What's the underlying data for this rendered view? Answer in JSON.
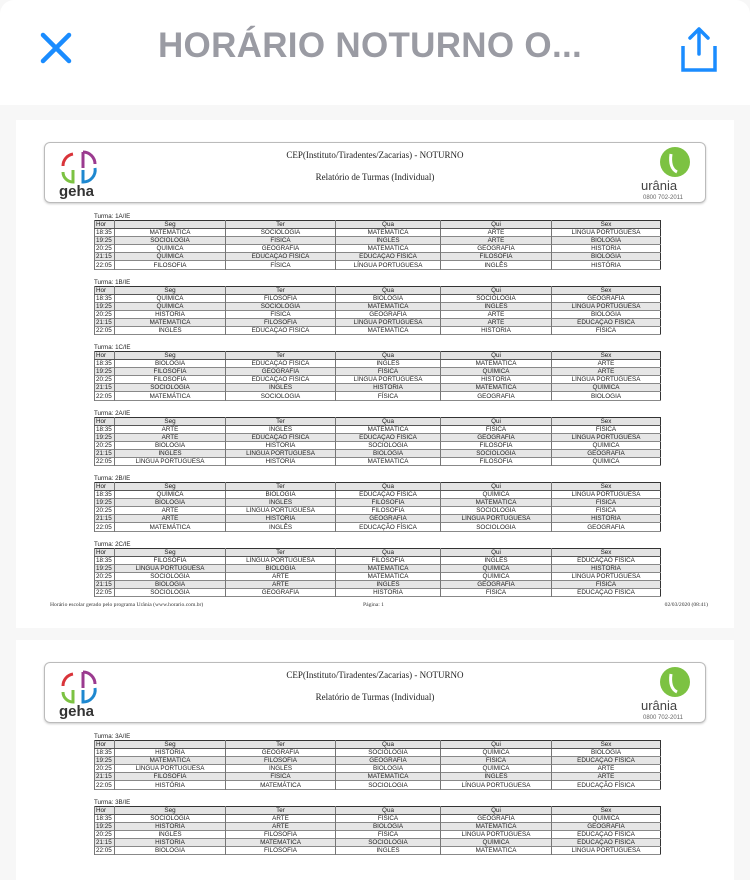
{
  "header": {
    "title": "HORÁRIO NOTURNO O...",
    "close_icon": "close-icon",
    "share_icon": "share-icon",
    "accent": "#1a8cff"
  },
  "report": {
    "school": "CEP(Instituto/Tiradentes/Zacarias) - NOTURNO",
    "subtitle": "Relatório de Turmas (Individual)",
    "logo_left": "geha",
    "logo_right": "urânia",
    "logo_right_phone": "0800 702-2011",
    "columns": [
      "Hor",
      "Seg",
      "Ter",
      "Qua",
      "Qui",
      "Sex"
    ],
    "times": [
      "18:35",
      "19:25",
      "20:25",
      "21:15",
      "22:05"
    ]
  },
  "pages": [
    {
      "turmas": [
        {
          "label": "Turma: 1A/IE",
          "rows": [
            [
              "MATEMÁTICA",
              "SOCIOLOGIA",
              "MATEMÁTICA",
              "ARTE",
              "LÍNGUA PORTUGUESA"
            ],
            [
              "SOCIOLOGIA",
              "FÍSICA",
              "INGLÊS",
              "ARTE",
              "BIOLOGIA"
            ],
            [
              "QUÍMICA",
              "GEOGRAFIA",
              "MATEMÁTICA",
              "GEOGRAFIA",
              "HISTÓRIA"
            ],
            [
              "QUÍMICA",
              "EDUCAÇÃO FÍSICA",
              "EDUCAÇÃO FÍSICA",
              "FILOSOFIA",
              "BIOLOGIA"
            ],
            [
              "FILOSOFIA",
              "FÍSICA",
              "LÍNGUA PORTUGUESA",
              "INGLÊS",
              "HISTÓRIA"
            ]
          ]
        },
        {
          "label": "Turma: 1B/IE",
          "rows": [
            [
              "QUÍMICA",
              "FILOSOFIA",
              "BIOLOGIA",
              "SOCIOLOGIA",
              "GEOGRAFIA"
            ],
            [
              "QUÍMICA",
              "SOCIOLOGIA",
              "MATEMÁTICA",
              "INGLÊS",
              "LÍNGUA PORTUGUESA"
            ],
            [
              "HISTÓRIA",
              "FÍSICA",
              "GEOGRAFIA",
              "ARTE",
              "BIOLOGIA"
            ],
            [
              "MATEMÁTICA",
              "FILOSOFIA",
              "LÍNGUA PORTUGUESA",
              "ARTE",
              "EDUCAÇÃO FÍSICA"
            ],
            [
              "INGLÊS",
              "EDUCAÇÃO FÍSICA",
              "MATEMÁTICA",
              "HISTÓRIA",
              "FÍSICA"
            ]
          ]
        },
        {
          "label": "Turma: 1C/IE",
          "rows": [
            [
              "BIOLOGIA",
              "EDUCAÇÃO FÍSICA",
              "INGLÊS",
              "MATEMÁTICA",
              "ARTE"
            ],
            [
              "FILOSOFIA",
              "GEOGRAFIA",
              "FÍSICA",
              "QUÍMICA",
              "ARTE"
            ],
            [
              "FILOSOFIA",
              "EDUCAÇÃO FÍSICA",
              "LÍNGUA PORTUGUESA",
              "HISTÓRIA",
              "LÍNGUA PORTUGUESA"
            ],
            [
              "SOCIOLOGIA",
              "INGLÊS",
              "HISTÓRIA",
              "MATEMÁTICA",
              "QUÍMICA"
            ],
            [
              "MATEMÁTICA",
              "SOCIOLOGIA",
              "FÍSICA",
              "GEOGRAFIA",
              "BIOLOGIA"
            ]
          ]
        },
        {
          "label": "Turma: 2A/IE",
          "rows": [
            [
              "ARTE",
              "INGLÊS",
              "MATEMÁTICA",
              "FÍSICA",
              "FÍSICA"
            ],
            [
              "ARTE",
              "EDUCAÇÃO FÍSICA",
              "EDUCAÇÃO FÍSICA",
              "GEOGRAFIA",
              "LÍNGUA PORTUGUESA"
            ],
            [
              "BIOLOGIA",
              "HISTÓRIA",
              "SOCIOLOGIA",
              "FILOSOFIA",
              "QUÍMICA"
            ],
            [
              "INGLÊS",
              "LÍNGUA PORTUGUESA",
              "BIOLOGIA",
              "SOCIOLOGIA",
              "GEOGRAFIA"
            ],
            [
              "LÍNGUA PORTUGUESA",
              "HISTÓRIA",
              "MATEMÁTICA",
              "FILOSOFIA",
              "QUÍMICA"
            ]
          ]
        },
        {
          "label": "Turma: 2B/IE",
          "rows": [
            [
              "QUÍMICA",
              "BIOLOGIA",
              "EDUCAÇÃO FÍSICA",
              "QUÍMICA",
              "LÍNGUA PORTUGUESA"
            ],
            [
              "BIOLOGIA",
              "INGLÊS",
              "FILOSOFIA",
              "MATEMÁTICA",
              "FÍSICA"
            ],
            [
              "ARTE",
              "LÍNGUA PORTUGUESA",
              "FILOSOFIA",
              "SOCIOLOGIA",
              "FÍSICA"
            ],
            [
              "ARTE",
              "HISTÓRIA",
              "GEOGRAFIA",
              "LÍNGUA PORTUGUESA",
              "HISTÓRIA"
            ],
            [
              "MATEMÁTICA",
              "INGLÊS",
              "EDUCAÇÃO FÍSICA",
              "SOCIOLOGIA",
              "GEOGRAFIA"
            ]
          ]
        },
        {
          "label": "Turma: 2C/IE",
          "rows": [
            [
              "FILOSOFIA",
              "LÍNGUA PORTUGUESA",
              "FILOSOFIA",
              "INGLÊS",
              "EDUCAÇÃO FÍSICA"
            ],
            [
              "LÍNGUA PORTUGUESA",
              "BIOLOGIA",
              "MATEMÁTICA",
              "QUÍMICA",
              "HISTÓRIA"
            ],
            [
              "SOCIOLOGIA",
              "ARTE",
              "MATEMÁTICA",
              "QUÍMICA",
              "LÍNGUA PORTUGUESA"
            ],
            [
              "BIOLOGIA",
              "ARTE",
              "INGLÊS",
              "GEOGRAFIA",
              "FÍSICA"
            ],
            [
              "SOCIOLOGIA",
              "GEOGRAFIA",
              "HISTÓRIA",
              "FÍSICA",
              "EDUCAÇÃO FÍSICA"
            ]
          ]
        }
      ],
      "footer": {
        "left": "Horário escolar gerado pelo programa Urânia (www.horario.com.br)",
        "center": "Página: 1",
        "right": "02/03/2020    (08:41)"
      }
    },
    {
      "turmas": [
        {
          "label": "Turma: 3A/IE",
          "rows": [
            [
              "HISTÓRIA",
              "GEOGRAFIA",
              "SOCIOLOGIA",
              "QUÍMICA",
              "BIOLOGIA"
            ],
            [
              "MATEMÁTICA",
              "FILOSOFIA",
              "GEOGRAFIA",
              "FÍSICA",
              "EDUCAÇÃO FÍSICA"
            ],
            [
              "LÍNGUA PORTUGUESA",
              "INGLÊS",
              "BIOLOGIA",
              "QUÍMICA",
              "ARTE"
            ],
            [
              "FILOSOFIA",
              "FÍSICA",
              "MATEMÁTICA",
              "INGLÊS",
              "ARTE"
            ],
            [
              "HISTÓRIA",
              "MATEMÁTICA",
              "SOCIOLOGIA",
              "LÍNGUA PORTUGUESA",
              "EDUCAÇÃO FÍSICA"
            ]
          ]
        },
        {
          "label": "Turma: 3B/IE",
          "rows": [
            [
              "SOCIOLOGIA",
              "ARTE",
              "FÍSICA",
              "GEOGRAFIA",
              "QUÍMICA"
            ],
            [
              "HISTÓRIA",
              "ARTE",
              "BIOLOGIA",
              "MATEMÁTICA",
              "GEOGRAFIA"
            ],
            [
              "INGLÊS",
              "FILOSOFIA",
              "FÍSICA",
              "LÍNGUA PORTUGUESA",
              "EDUCAÇÃO FÍSICA"
            ],
            [
              "HISTÓRIA",
              "MATEMÁTICA",
              "SOCIOLOGIA",
              "QUÍMICA",
              "EDUCAÇÃO FÍSICA"
            ],
            [
              "BIOLOGIA",
              "FILOSOFIA",
              "INGLÊS",
              "MATEMÁTICA",
              "LÍNGUA PORTUGUESA"
            ]
          ]
        }
      ]
    }
  ]
}
